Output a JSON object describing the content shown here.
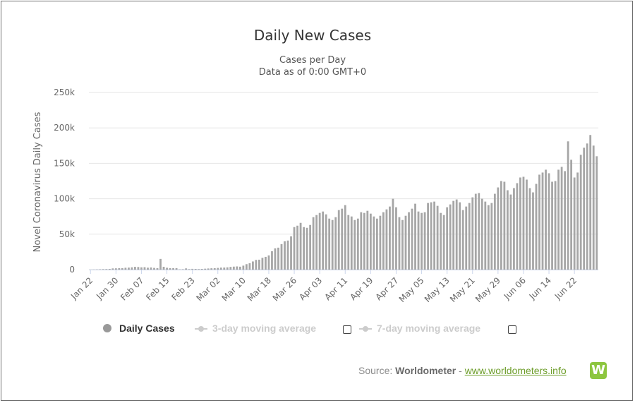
{
  "chart_data": {
    "type": "bar",
    "title": "Daily New Cases",
    "subtitle_lines": [
      "Cases per Day",
      "Data as of 0:00 GMT+0"
    ],
    "ylabel": "Novel Coronavirus Daily Cases",
    "xlabel": "",
    "ylim": [
      0,
      250000
    ],
    "y_ticks": [
      {
        "value": 0,
        "label": "0"
      },
      {
        "value": 50000,
        "label": "50k"
      },
      {
        "value": 100000,
        "label": "100k"
      },
      {
        "value": 150000,
        "label": "150k"
      },
      {
        "value": 200000,
        "label": "200k"
      },
      {
        "value": 250000,
        "label": "250k"
      }
    ],
    "x_tick_labels": [
      "Jan 22",
      "Jan 30",
      "Feb 07",
      "Feb 15",
      "Feb 23",
      "Mar 02",
      "Mar 10",
      "Mar 18",
      "Mar 26",
      "Apr 03",
      "Apr 11",
      "Apr 19",
      "Apr 27",
      "May 05",
      "May 13",
      "May 21",
      "May 29",
      "Jun 06",
      "Jun 14",
      "Jun 22"
    ],
    "x_tick_step_days": 8,
    "grid": true,
    "series": [
      {
        "name": "Daily Cases",
        "color": "#a6a6a6",
        "values": [
          100,
          200,
          300,
          500,
          700,
          800,
          1000,
          1700,
          1800,
          2000,
          2100,
          2600,
          2800,
          3200,
          3900,
          3700,
          3200,
          3400,
          2700,
          3000,
          2400,
          2000,
          15100,
          4000,
          2600,
          2100,
          2100,
          2000,
          400,
          600,
          1700,
          700,
          1100,
          1000,
          800,
          1000,
          1300,
          1600,
          1900,
          2000,
          2400,
          2800,
          2900,
          3200,
          3800,
          4200,
          4500,
          4100,
          5600,
          7700,
          9000,
          11500,
          13700,
          14000,
          16600,
          18000,
          20000,
          26000,
          30000,
          31000,
          36000,
          40000,
          41000,
          47000,
          60000,
          62000,
          66000,
          60000,
          59000,
          63000,
          74000,
          77000,
          80000,
          82000,
          78000,
          72000,
          70000,
          74000,
          84000,
          86000,
          91000,
          77000,
          75000,
          70000,
          72000,
          81000,
          80000,
          83000,
          79000,
          75000,
          72000,
          76000,
          81000,
          85000,
          89000,
          100000,
          88000,
          74000,
          70000,
          76000,
          81000,
          86000,
          93000,
          82000,
          80000,
          81000,
          94000,
          95000,
          96000,
          90000,
          80000,
          77000,
          88000,
          92000,
          97000,
          99000,
          95000,
          84000,
          89000,
          94000,
          102000,
          107000,
          108000,
          100000,
          96000,
          91000,
          94000,
          107000,
          116000,
          125000,
          124000,
          112000,
          106000,
          115000,
          122000,
          130000,
          131000,
          127000,
          115000,
          109000,
          121000,
          134000,
          137000,
          141000,
          136000,
          124000,
          125000,
          141000,
          145000,
          139000,
          181000,
          155000,
          130000,
          137000,
          162000,
          172000,
          178000,
          190000,
          175000,
          160000
        ]
      }
    ]
  },
  "title": "Daily New Cases",
  "subtitle1": "Cases per Day",
  "subtitle2": "Data as of 0:00 GMT+0",
  "legend": {
    "daily": "Daily Cases",
    "avg3": "3-day moving average",
    "avg7": "7-day moving average"
  },
  "source": {
    "prefix": "Source: ",
    "name": "Worldometer",
    "separator": " - ",
    "link": "www.worldometers.info",
    "logo_letter": "W"
  },
  "colors": {
    "bar": "#a6a6a6",
    "grid": "#e6e6e6",
    "legend_inactive": "#cccccc",
    "link": "#6d9d2a",
    "logo": "#8dc63f"
  }
}
